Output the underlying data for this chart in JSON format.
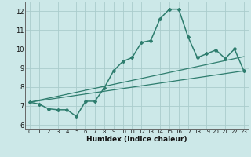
{
  "title": "",
  "xlabel": "Humidex (Indice chaleur)",
  "background_color": "#cce8e8",
  "grid_color": "#aacccc",
  "line_color": "#2e7d6e",
  "xlim": [
    -0.5,
    23.5
  ],
  "ylim": [
    5.8,
    12.5
  ],
  "yticks": [
    6,
    7,
    8,
    9,
    10,
    11,
    12
  ],
  "xticks": [
    0,
    1,
    2,
    3,
    4,
    5,
    6,
    7,
    8,
    9,
    10,
    11,
    12,
    13,
    14,
    15,
    16,
    17,
    18,
    19,
    20,
    21,
    22,
    23
  ],
  "main_line_x": [
    0,
    1,
    2,
    3,
    4,
    5,
    6,
    7,
    8,
    9,
    10,
    11,
    12,
    13,
    14,
    15,
    16,
    17,
    18,
    19,
    20,
    21,
    22,
    23
  ],
  "main_line_y": [
    7.2,
    7.1,
    6.85,
    6.8,
    6.8,
    6.45,
    7.25,
    7.25,
    7.95,
    8.85,
    9.35,
    9.55,
    10.35,
    10.45,
    11.6,
    12.1,
    12.1,
    10.65,
    9.55,
    9.75,
    9.95,
    9.5,
    10.0,
    8.85
  ],
  "trend_line1_x": [
    0,
    23
  ],
  "trend_line1_y": [
    7.2,
    9.6
  ],
  "trend_line2_x": [
    0,
    23
  ],
  "trend_line2_y": [
    7.2,
    8.85
  ],
  "xlabel_fontsize": 6.5,
  "xtick_fontsize": 5.0,
  "ytick_fontsize": 6.0,
  "marker": "D",
  "markersize": 2.0,
  "linewidth_main": 1.1,
  "linewidth_trend": 0.9
}
